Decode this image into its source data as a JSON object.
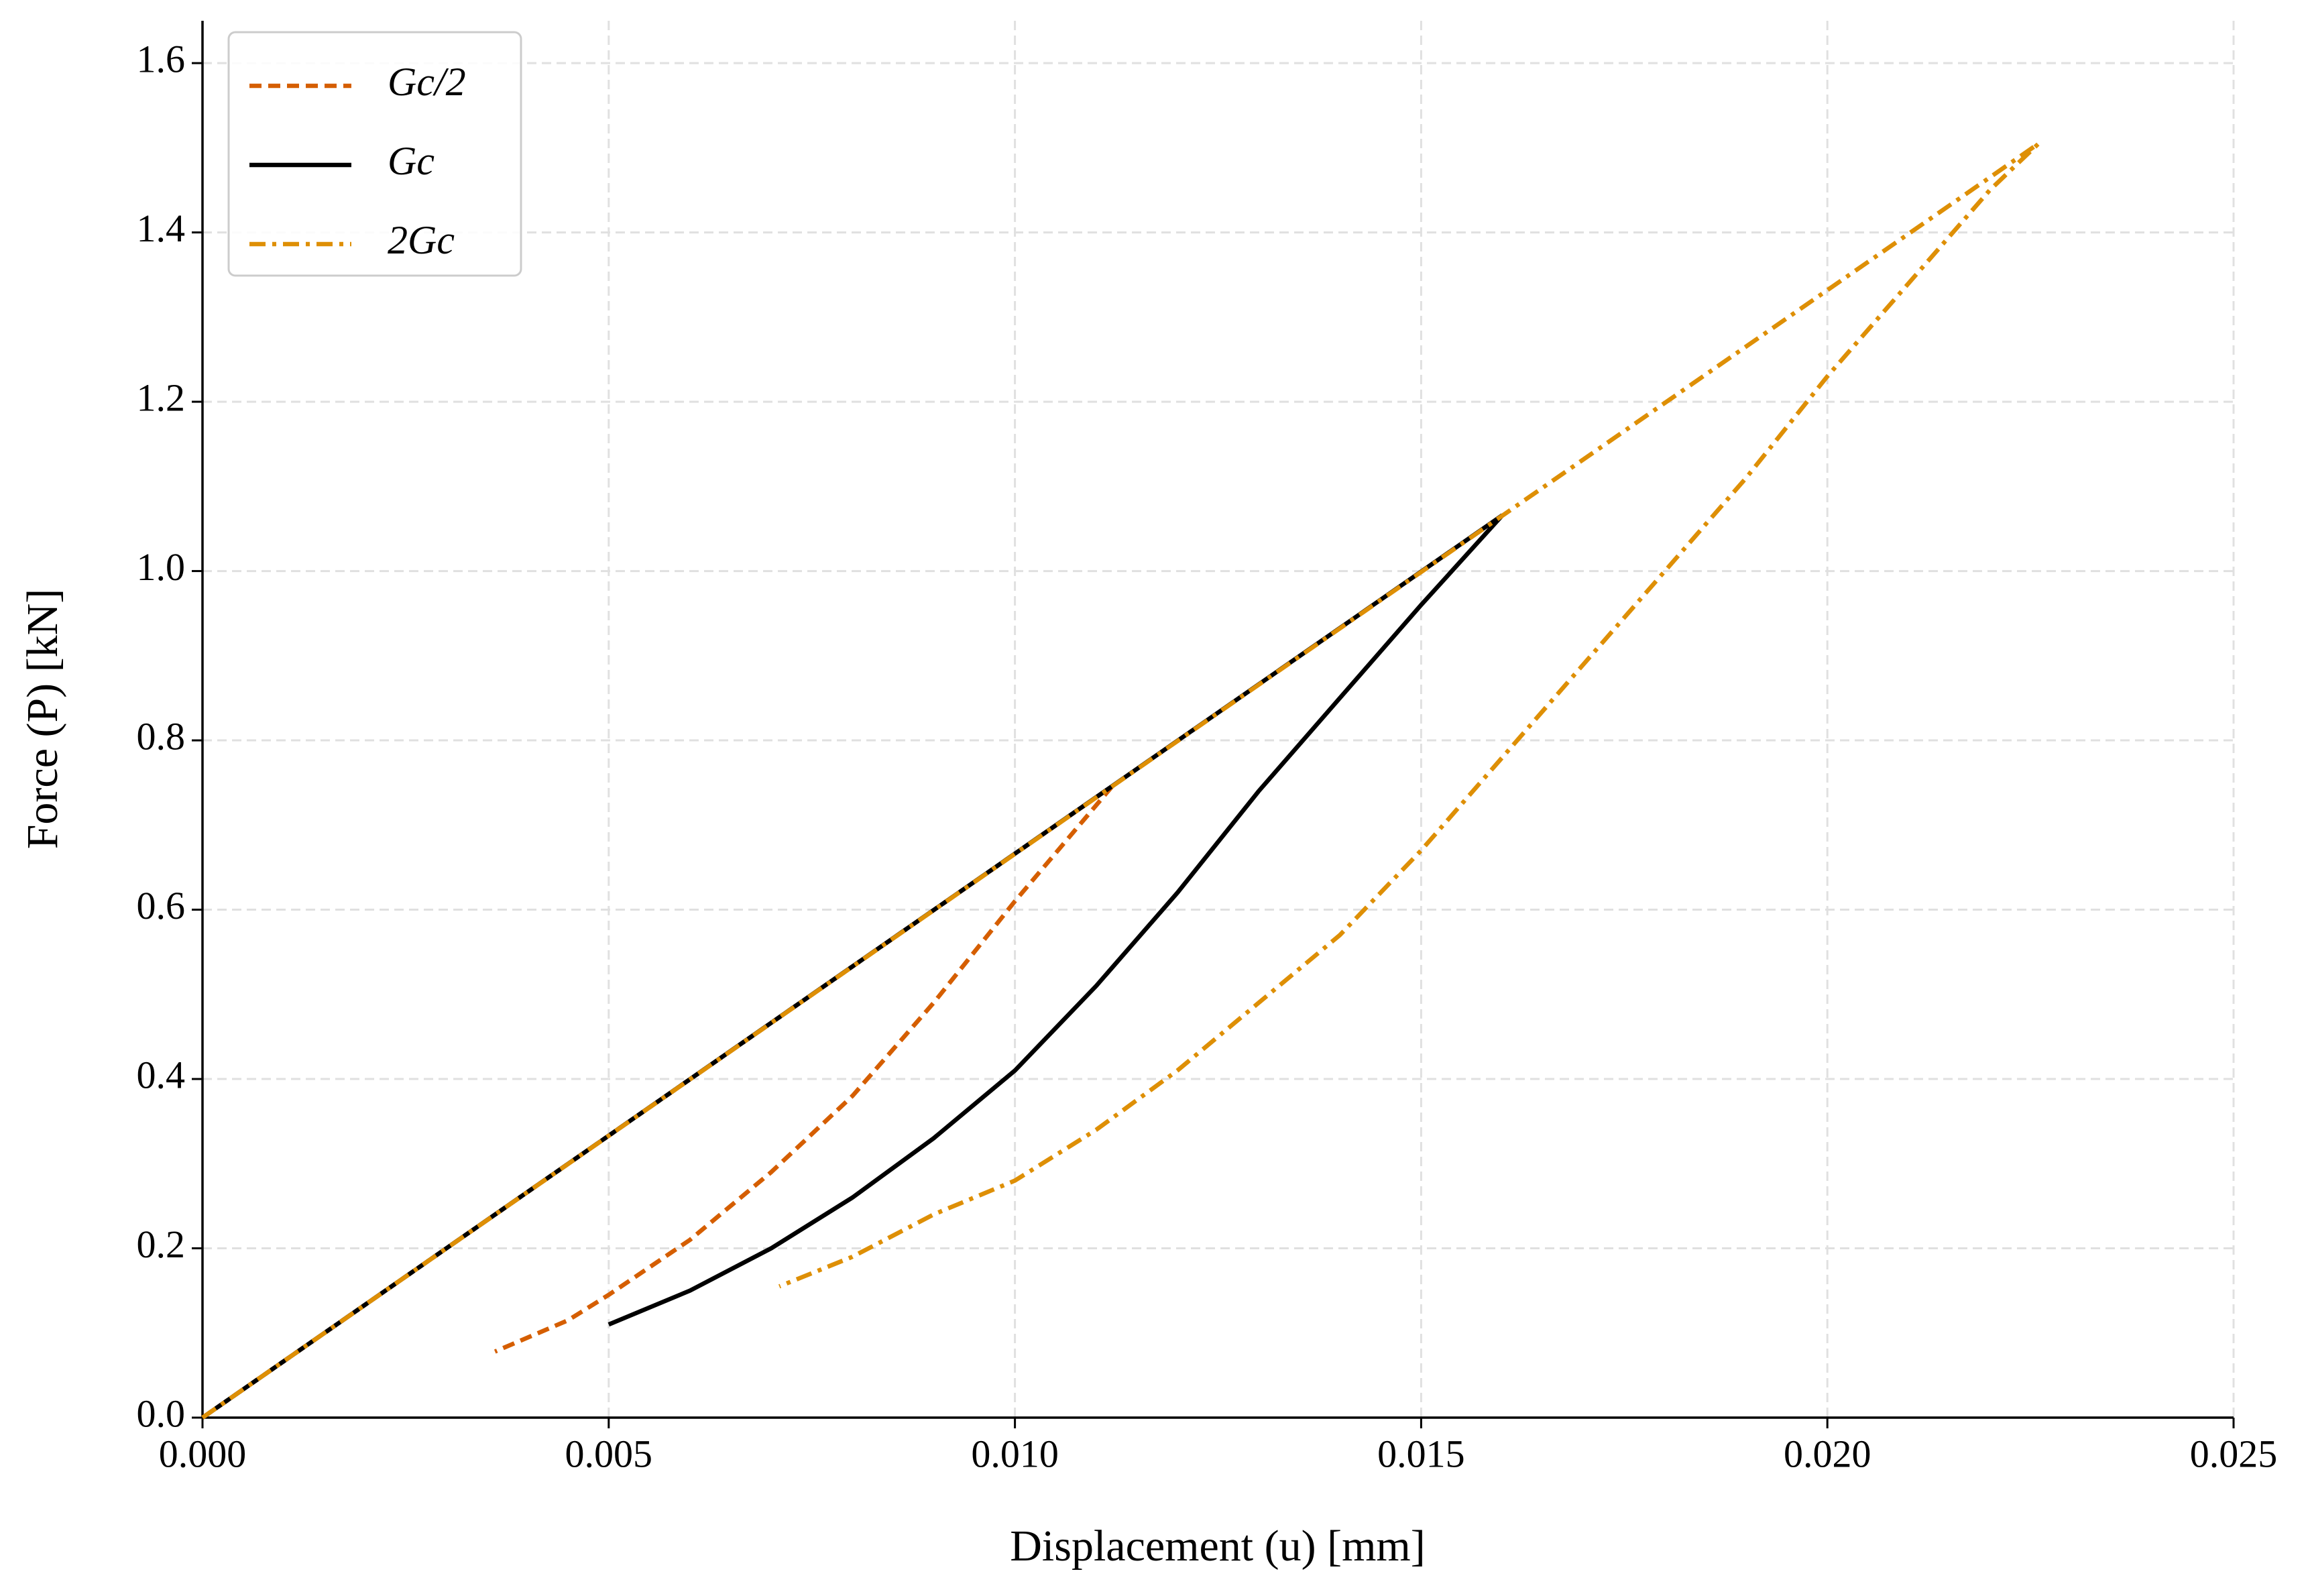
{
  "chart_data": {
    "type": "line",
    "xlabel": "Displacement (u) [mm]",
    "ylabel": "Force (P) [kN]",
    "xlim": [
      0,
      0.025
    ],
    "ylim": [
      0,
      1.65
    ],
    "xticks": [
      {
        "value": 0,
        "label": "0.000"
      },
      {
        "value": 0.005,
        "label": "0.005"
      },
      {
        "value": 0.01,
        "label": "0.010"
      },
      {
        "value": 0.015,
        "label": "0.015"
      },
      {
        "value": 0.02,
        "label": "0.020"
      },
      {
        "value": 0.025,
        "label": "0.025"
      }
    ],
    "yticks": [
      {
        "value": 0,
        "label": "0.0"
      },
      0.2,
      0.4,
      0.6,
      0.8,
      {
        "value": 1,
        "label": "1.0"
      },
      1.2,
      1.4,
      1.6
    ],
    "grid": true,
    "legend": "upper left",
    "series": [
      {
        "name": "Gc/2",
        "color": "#d55e00",
        "dash": "dashed",
        "x": [
          0,
          0.0112,
          0.01,
          0.009,
          0.008,
          0.007,
          0.006,
          0.005,
          0.0045,
          0.0036
        ],
        "values": [
          0,
          0.746,
          0.61,
          0.49,
          0.38,
          0.29,
          0.21,
          0.145,
          0.115,
          0.078
        ]
      },
      {
        "name": "Gc",
        "color": "#000000",
        "dash": "solid",
        "x": [
          0,
          0.016,
          0.015,
          0.014,
          0.013,
          0.012,
          0.011,
          0.01,
          0.009,
          0.008,
          0.007,
          0.006,
          0.005
        ],
        "values": [
          0,
          1.066,
          0.96,
          0.85,
          0.74,
          0.62,
          0.51,
          0.41,
          0.33,
          0.26,
          0.2,
          0.15,
          0.11
        ]
      },
      {
        "name": "2Gc",
        "color": "#de8f05",
        "dash": "dashdot",
        "x": [
          0,
          0.0226,
          0.022,
          0.021,
          0.02,
          0.019,
          0.018,
          0.017,
          0.016,
          0.015,
          0.014,
          0.013,
          0.012,
          0.011,
          0.01,
          0.009,
          0.008,
          0.0071
        ],
        "values": [
          0,
          1.505,
          1.45,
          1.34,
          1.23,
          1.11,
          1.0,
          0.89,
          0.78,
          0.67,
          0.57,
          0.49,
          0.41,
          0.34,
          0.28,
          0.24,
          0.19,
          0.155
        ]
      }
    ]
  }
}
